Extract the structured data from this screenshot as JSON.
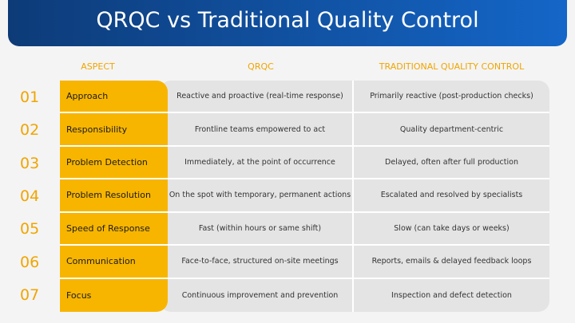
{
  "header": {
    "title": "QRQC vs Traditional Quality Control"
  },
  "table": {
    "columns": [
      "ASPECT",
      "QRQC",
      "TRADITIONAL QUALITY CONTROL"
    ],
    "rows": [
      {
        "number": "01",
        "aspect": "Approach",
        "qrqc": "Reactive and proactive (real-time response)",
        "traditional": "Primarily reactive (post-production checks)"
      },
      {
        "number": "02",
        "aspect": "Responsibility",
        "qrqc": "Frontline teams empowered to act",
        "traditional": "Quality department-centric"
      },
      {
        "number": "03",
        "aspect": "Problem Detection",
        "qrqc": "Immediately, at the point of occurrence",
        "traditional": "Delayed, often after full production"
      },
      {
        "number": "04",
        "aspect": "Problem Resolution",
        "qrqc": "On the spot with temporary, permanent actions",
        "traditional": "Escalated and resolved by specialists"
      },
      {
        "number": "05",
        "aspect": "Speed of Response",
        "qrqc": "Fast (within hours or same shift)",
        "traditional": "Slow (can take days or weeks)"
      },
      {
        "number": "06",
        "aspect": "Communication",
        "qrqc": "Face-to-face, structured on-site meetings",
        "traditional": "Reports, emails & delayed feedback loops"
      },
      {
        "number": "07",
        "aspect": "Focus",
        "qrqc": "Continuous improvement and prevention",
        "traditional": "Inspection and defect detection"
      }
    ]
  }
}
